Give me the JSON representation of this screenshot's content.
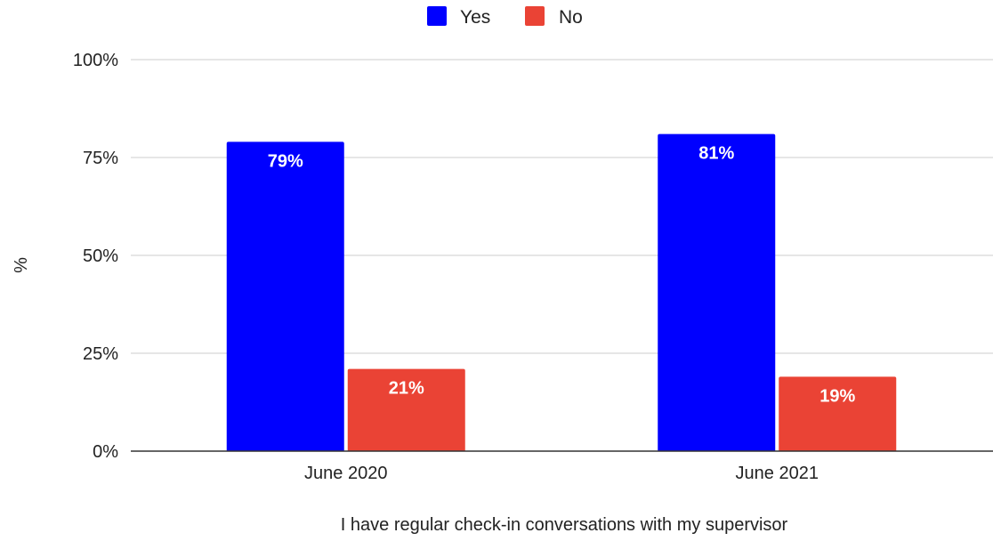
{
  "chart_data": {
    "type": "bar",
    "categories": [
      "June 2020",
      "June 2021"
    ],
    "series": [
      {
        "name": "Yes",
        "values": [
          79,
          81
        ],
        "labels": [
          "79%",
          "81%"
        ],
        "color": "#0000ff"
      },
      {
        "name": "No",
        "values": [
          21,
          19
        ],
        "labels": [
          "21%",
          "19%"
        ],
        "color": "#ea4335"
      }
    ],
    "title": "",
    "xlabel": "I have regular check-in conversations with my supervisor",
    "ylabel": "%",
    "ylim": [
      0,
      100
    ],
    "yticks": [
      0,
      25,
      50,
      75,
      100
    ],
    "ytick_labels": [
      "0%",
      "25%",
      "50%",
      "75%",
      "100%"
    ],
    "grid": true,
    "legend": "top-center"
  }
}
